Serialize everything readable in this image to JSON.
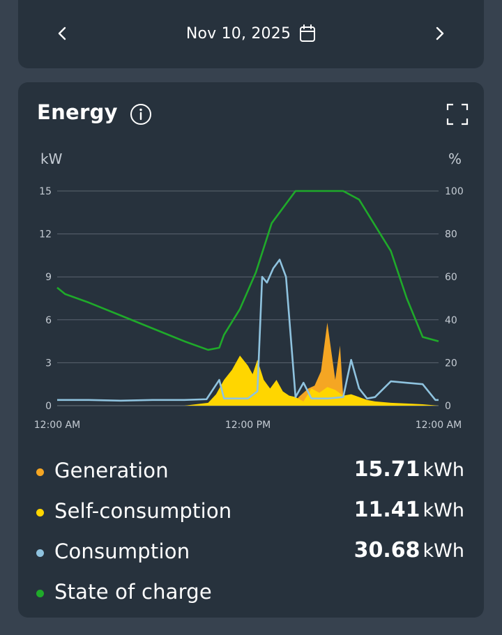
{
  "date_nav": {
    "date_label": "Nov 10, 2025",
    "prev_icon": "chevron-left-icon",
    "next_icon": "chevron-right-icon",
    "calendar_icon": "calendar-icon"
  },
  "energy_card": {
    "title": "Energy",
    "info_icon": "info-icon",
    "expand_icon": "fullscreen-icon"
  },
  "chart_data": {
    "type": "area",
    "left_axis_unit": "kW",
    "right_axis_unit": "%",
    "left_ticks": [
      "0",
      "3",
      "6",
      "9",
      "12",
      "15"
    ],
    "right_ticks": [
      "0",
      "20",
      "40",
      "60",
      "80",
      "100"
    ],
    "ylim_left": [
      0,
      15
    ],
    "ylim_right": [
      0,
      100
    ],
    "x_ticks": [
      "12:00 AM",
      "12:00 PM",
      "12:00 AM"
    ],
    "grid": true,
    "colors": {
      "generation": "#f5a623",
      "self_consumption": "#ffd600",
      "consumption": "#8fc3df",
      "state_of_charge": "#1faa2a"
    },
    "series": [
      {
        "name": "State of charge",
        "axis": "right",
        "x_hours": [
          0,
          0.5,
          2,
          4,
          6,
          8,
          9.5,
          10.2,
          10.5,
          11.5,
          12.5,
          13.5,
          15,
          16,
          17,
          18,
          19,
          20,
          21,
          22,
          23,
          24
        ],
        "values": [
          55,
          52,
          48,
          42,
          36,
          30,
          26,
          27,
          33,
          45,
          62,
          85,
          100,
          100,
          100,
          100,
          96,
          84,
          72,
          50,
          32,
          30
        ]
      },
      {
        "name": "Consumption",
        "axis": "left",
        "x_hours": [
          0,
          2,
          4,
          6,
          8,
          9.4,
          10.2,
          10.5,
          11,
          12,
          12.6,
          12.9,
          13.2,
          13.6,
          14,
          14.4,
          15,
          15.5,
          16,
          17,
          18,
          18.5,
          19,
          19.5,
          20,
          21,
          22,
          23,
          23.8,
          24
        ],
        "values": [
          0.4,
          0.4,
          0.35,
          0.4,
          0.4,
          0.45,
          1.8,
          0.5,
          0.5,
          0.5,
          1.0,
          9.0,
          8.6,
          9.6,
          10.2,
          9.0,
          0.6,
          1.6,
          0.5,
          0.5,
          0.6,
          3.2,
          1.2,
          0.5,
          0.6,
          1.7,
          1.6,
          1.5,
          0.4,
          0.4
        ]
      },
      {
        "name": "Self-consumption",
        "axis": "left",
        "x_hours": [
          0,
          8,
          9.5,
          10,
          10.5,
          11,
          11.5,
          12,
          12.3,
          12.6,
          13,
          13.4,
          13.8,
          14.2,
          14.6,
          15,
          15.5,
          16,
          16.5,
          17,
          17.5,
          18,
          18.5,
          19,
          19.5,
          20,
          21,
          22,
          23,
          24
        ],
        "values": [
          0,
          0,
          0.2,
          0.8,
          1.8,
          2.5,
          3.5,
          2.8,
          2.2,
          3.2,
          1.8,
          1.2,
          1.8,
          1.0,
          0.7,
          0.6,
          0.3,
          1.2,
          0.9,
          1.3,
          1.1,
          0.7,
          0.8,
          0.6,
          0.4,
          0.3,
          0.2,
          0.15,
          0.1,
          0
        ]
      },
      {
        "name": "Generation",
        "axis": "left",
        "x_hours": [
          0,
          14.8,
          15.2,
          15.8,
          16.2,
          16.6,
          17.0,
          17.5,
          17.8,
          18.0,
          18.3,
          18.6,
          24
        ],
        "values": [
          0,
          0,
          0.6,
          1.2,
          1.4,
          2.4,
          5.8,
          1.8,
          4.2,
          0.6,
          0.3,
          0,
          0
        ]
      }
    ]
  },
  "legend": [
    {
      "label": "Generation",
      "value": "15.71",
      "unit": "kWh",
      "color": "#f5a623"
    },
    {
      "label": "Self-consumption",
      "value": "11.41",
      "unit": "kWh",
      "color": "#ffd600"
    },
    {
      "label": "Consumption",
      "value": "30.68",
      "unit": "kWh",
      "color": "#8fc3df"
    },
    {
      "label": "State of charge",
      "value": "",
      "unit": "",
      "color": "#1faa2a"
    }
  ]
}
